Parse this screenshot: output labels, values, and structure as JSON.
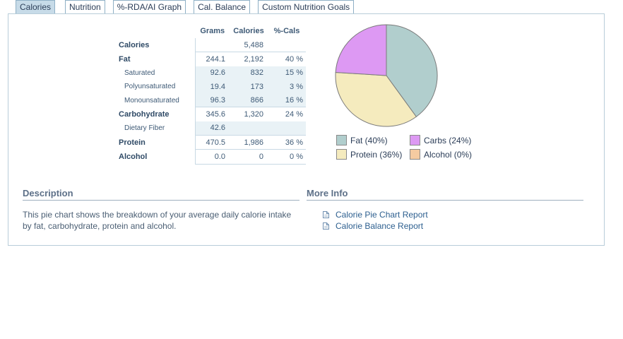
{
  "tabs": [
    "Calories",
    "Nutrition",
    "%-RDA/AI Graph",
    "Cal. Balance",
    "Custom Nutrition Goals"
  ],
  "table": {
    "headers": [
      "Grams",
      "Calories",
      "%-Cals"
    ],
    "rows": [
      {
        "name": "Calories",
        "grams": "",
        "calories": "5,488",
        "pct": ""
      },
      {
        "name": "Fat",
        "grams": "244.1",
        "calories": "2,192",
        "pct": "40 %"
      },
      {
        "name": "Saturated",
        "grams": "92.6",
        "calories": "832",
        "pct": "15 %"
      },
      {
        "name": "Polyunsaturated",
        "grams": "19.4",
        "calories": "173",
        "pct": "3 %"
      },
      {
        "name": "Monounsaturated",
        "grams": "96.3",
        "calories": "866",
        "pct": "16 %"
      },
      {
        "name": "Carbohydrate",
        "grams": "345.6",
        "calories": "1,320",
        "pct": "24 %"
      },
      {
        "name": "Dietary Fiber",
        "grams": "42.6",
        "calories": "",
        "pct": ""
      },
      {
        "name": "Protein",
        "grams": "470.5",
        "calories": "1,986",
        "pct": "36 %"
      },
      {
        "name": "Alcohol",
        "grams": "0.0",
        "calories": "0",
        "pct": "0 %"
      }
    ]
  },
  "chart_data": {
    "type": "pie",
    "slices": [
      {
        "label": "Fat",
        "value": 40,
        "color": "#b1cecd"
      },
      {
        "label": "Carbs",
        "value": 24,
        "color": "#dd99f3"
      },
      {
        "label": "Protein",
        "value": 36,
        "color": "#f5ebbe"
      },
      {
        "label": "Alcohol",
        "value": 0,
        "color": "#f5cba1"
      }
    ],
    "legend": [
      "Fat  (40%)",
      "Carbs  (24%)",
      "Protein  (36%)",
      "Alcohol  (0%)"
    ]
  },
  "description": {
    "title": "Description",
    "text": "This pie chart shows the breakdown of your average daily calorie intake by fat, carbohydrate, protein and alcohol."
  },
  "more_info": {
    "title": "More Info",
    "links": [
      "Calorie Pie Chart Report",
      "Calorie Balance Report"
    ],
    "icon": "document-icon"
  }
}
